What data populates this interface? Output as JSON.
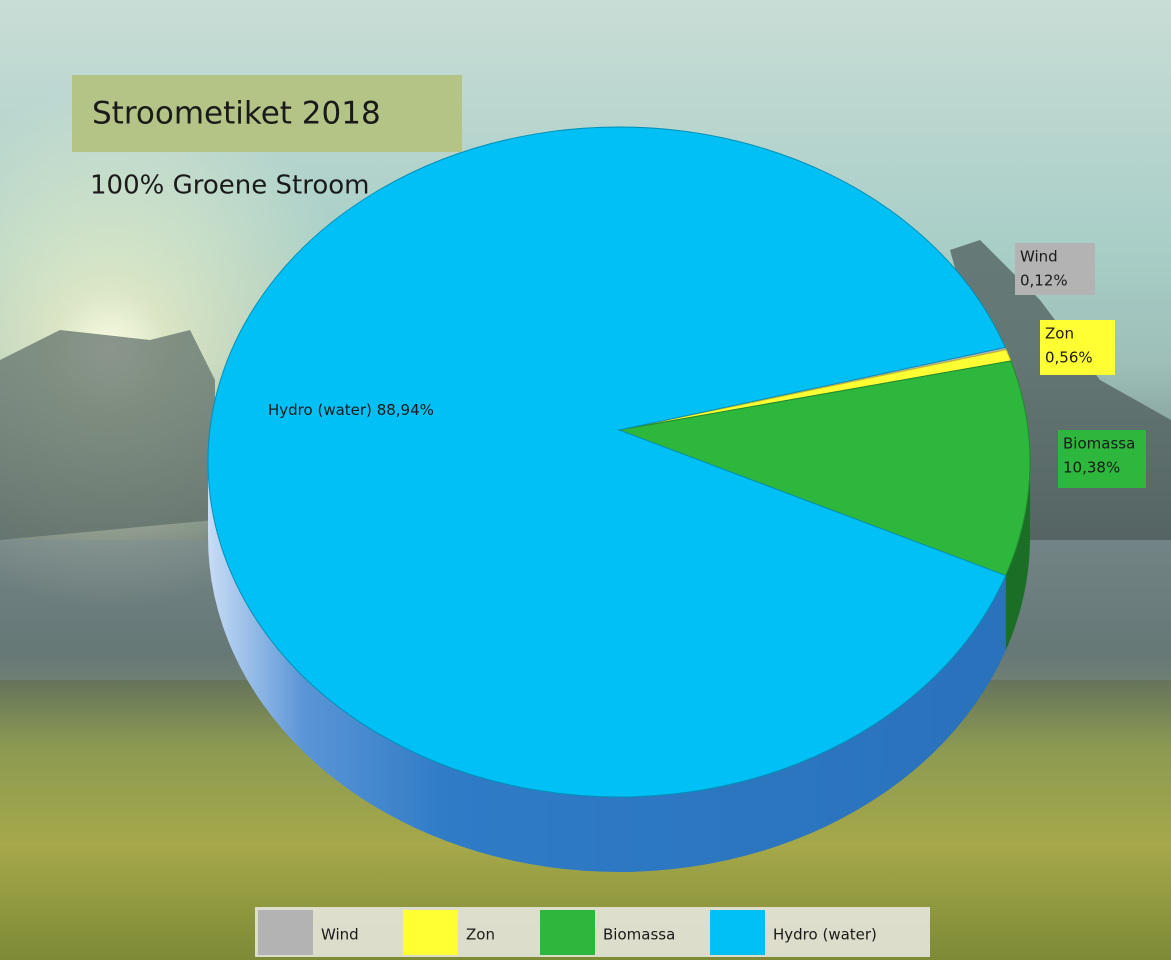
{
  "chart_data": {
    "type": "pie",
    "title": "Stroometiket 2018",
    "subtitle": "100% Groene Stroom",
    "categories": [
      "Wind",
      "Zon",
      "Biomassa",
      "Hydro (water)"
    ],
    "values": [
      0.12,
      0.56,
      10.38,
      88.94
    ],
    "value_labels": [
      "0,12%",
      "0,56%",
      "10,38%",
      "88,94%"
    ],
    "colors": [
      "#b3b3b3",
      "#ffff33",
      "#2db83d",
      "#00c0f5"
    ]
  }
}
